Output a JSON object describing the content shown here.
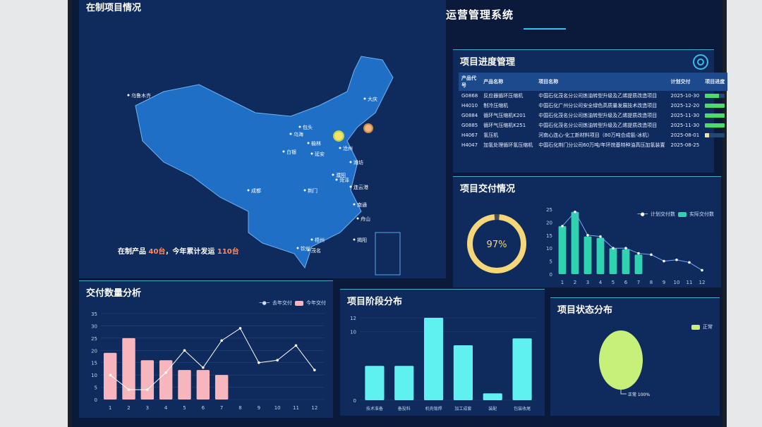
{
  "header": {
    "title": "数字化车间运营管理系统"
  },
  "colors": {
    "accent": "#33c7e6",
    "panel": "#0f2a5c",
    "green": "#4ddc6b",
    "teal": "#2fd3b0",
    "pink": "#f7b6bd",
    "cyan": "#5ff0f0",
    "lime": "#c6f07a",
    "gold": "#f5d77a"
  },
  "map": {
    "title": "在制项目情况",
    "cities": [
      "乌鲁木齐",
      "大庆",
      "包头",
      "乌海",
      "榆林",
      "白银",
      "延安",
      "沧州",
      "潍坊",
      "濮阳",
      "菏泽",
      "连云港",
      "成都",
      "荆门",
      "南通",
      "舟山",
      "梧州",
      "揭阳",
      "钦州",
      "茂名"
    ],
    "summary": {
      "prefix": "在制产品 ",
      "in_production": "40台",
      "middle": "，今年累计发运 ",
      "shipped": "110台"
    }
  },
  "progress": {
    "title": "项目进度管理",
    "columns": [
      "产品代号",
      "产品名称",
      "项目名称",
      "计划交付",
      "项目进度"
    ],
    "rows": [
      {
        "code": "G0868",
        "product": "反应器循环压缩机",
        "project": "中国石化茂名分公司炼油转型升级及乙烯提质改造项目",
        "date": "2025-10-30",
        "progress": 0.7
      },
      {
        "code": "H4010",
        "product": "制冷压缩机",
        "project": "中国石化广州分公司安全绿色高质量发展技术改造项目",
        "date": "2025-12-20",
        "progress": 1.0
      },
      {
        "code": "G0884",
        "product": "循环气压缩机K201",
        "project": "中国石化茂名分公司炼油转型升级及乙烯提质改造项目",
        "date": "2025-11-30",
        "progress": 1.0
      },
      {
        "code": "G0885",
        "product": "循环气压缩机K251",
        "project": "中国石化茂名分公司炼油转型升级及乙烯提质改造项目",
        "date": "2025-11-30",
        "progress": 1.0
      },
      {
        "code": "H4067",
        "product": "氢压机",
        "project": "河南心连心-化工新材料项目（80万吨合成氨-冰机）",
        "date": "2025-08-01",
        "progress": 0.2
      },
      {
        "code": "H4047",
        "product": "加氢处理循环氢压缩机",
        "project": "中国石化荆门分公司60万吨/年环烷基特种油高压加氢装置",
        "date": "2025-08-25",
        "progress": null
      }
    ]
  },
  "delivery": {
    "title": "项目交付情况",
    "rate": "97%",
    "rate_value": 0.97
  },
  "chart_data": [
    {
      "id": "delivery",
      "type": "bar",
      "categories": [
        "1",
        "2",
        "3",
        "4",
        "5",
        "6",
        "7",
        "8",
        "9",
        "10",
        "11",
        "12"
      ],
      "ylim": [
        0,
        25
      ],
      "yticks": [
        0,
        5,
        10,
        15,
        20,
        25
      ],
      "series": [
        {
          "name": "实际交付数",
          "type": "bar",
          "values": [
            18.5,
            24,
            14.5,
            14,
            10,
            9.5,
            7.5,
            null,
            null,
            null,
            null,
            null
          ]
        },
        {
          "name": "计划交付数",
          "type": "line",
          "values": [
            18.5,
            24,
            15,
            14.5,
            10,
            10,
            8,
            7.5,
            5,
            5.5,
            4.5,
            1.5
          ]
        }
      ],
      "legend": "top-right",
      "grid": false
    },
    {
      "id": "quantity",
      "title": "交付数量分析",
      "type": "bar",
      "categories": [
        "1",
        "2",
        "3",
        "4",
        "5",
        "6",
        "7",
        "8",
        "9",
        "10",
        "11",
        "12"
      ],
      "ylim": [
        0,
        35
      ],
      "yticks": [
        0,
        5,
        10,
        15,
        20,
        25,
        30,
        35
      ],
      "series": [
        {
          "name": "今年交付",
          "type": "bar",
          "values": [
            19,
            25,
            16,
            16,
            12,
            12,
            10,
            null,
            null,
            null,
            null,
            null
          ]
        },
        {
          "name": "去年交付",
          "type": "line",
          "values": [
            10,
            4,
            4,
            11,
            20,
            13,
            24,
            29,
            15,
            16,
            22,
            12
          ]
        }
      ],
      "legend": "top-right",
      "grid": true
    },
    {
      "id": "stage",
      "title": "项目阶段分布",
      "type": "bar",
      "categories": [
        "技术准备",
        "备投料",
        "机壳锻焊",
        "加工成套",
        "装配",
        "包装收尾"
      ],
      "ylim": [
        0,
        12
      ],
      "yticks": [
        0,
        10,
        12
      ],
      "series": [
        {
          "values": [
            5,
            5,
            12,
            8,
            1,
            9
          ]
        }
      ],
      "grid": true
    },
    {
      "id": "status",
      "title": "项目状态分布",
      "type": "pie",
      "slices": [
        {
          "name": "正常",
          "value": 100,
          "label": "正常 100%"
        }
      ],
      "legend": "top-right"
    }
  ]
}
